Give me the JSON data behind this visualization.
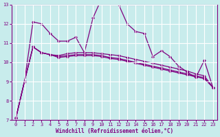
{
  "xlabel": "Windchill (Refroidissement éolien,°C)",
  "background_color": "#c8ecec",
  "line_color": "#800080",
  "grid_color": "#ffffff",
  "xlim": [
    -0.5,
    23.5
  ],
  "ylim": [
    7,
    13
  ],
  "xticks": [
    0,
    1,
    2,
    3,
    4,
    5,
    6,
    7,
    8,
    9,
    10,
    11,
    12,
    13,
    14,
    15,
    16,
    17,
    18,
    19,
    20,
    21,
    22,
    23
  ],
  "yticks": [
    7,
    8,
    9,
    10,
    11,
    12,
    13
  ],
  "series": [
    [
      7.1,
      9.0,
      12.1,
      12.0,
      11.5,
      11.1,
      11.1,
      11.3,
      10.5,
      12.3,
      13.3,
      13.2,
      13.0,
      12.0,
      11.6,
      11.5,
      10.3,
      10.6,
      10.3,
      9.8,
      9.5,
      9.2,
      10.1,
      8.7
    ],
    [
      7.1,
      9.0,
      10.8,
      10.5,
      10.4,
      10.35,
      10.45,
      10.5,
      10.5,
      10.5,
      10.45,
      10.4,
      10.35,
      10.25,
      10.15,
      10.05,
      9.95,
      9.85,
      9.75,
      9.65,
      9.55,
      9.4,
      9.3,
      8.7
    ],
    [
      7.1,
      9.0,
      10.8,
      10.5,
      10.4,
      10.3,
      10.35,
      10.4,
      10.4,
      10.4,
      10.35,
      10.25,
      10.2,
      10.1,
      10.0,
      9.9,
      9.8,
      9.7,
      9.6,
      9.5,
      9.4,
      9.3,
      9.2,
      8.7
    ],
    [
      7.1,
      9.0,
      10.8,
      10.5,
      10.4,
      10.25,
      10.3,
      10.35,
      10.35,
      10.35,
      10.3,
      10.2,
      10.15,
      10.05,
      9.95,
      9.85,
      9.75,
      9.65,
      9.55,
      9.45,
      9.35,
      9.25,
      9.15,
      8.7
    ]
  ]
}
